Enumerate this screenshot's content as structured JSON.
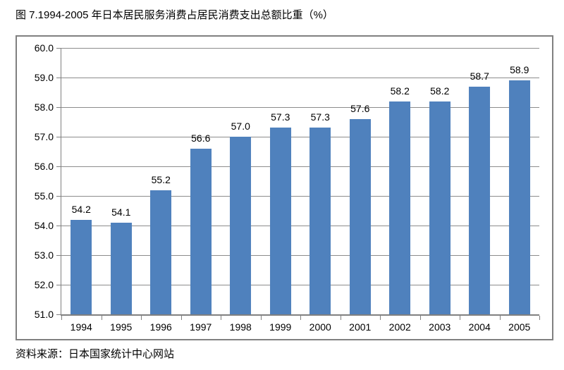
{
  "title": "图 7.1994-2005 年日本居民服务消费占居民消费支出总额比重（%）",
  "source": "资料来源：日本国家统计中心网站",
  "colors": {
    "bar": "#4F81BD",
    "grid": "#8C8C8C",
    "axis": "#808080",
    "frame": "#808080",
    "text": "#000000"
  },
  "chart_data": {
    "type": "bar",
    "title": "图 7.1994-2005 年日本居民服务消费占居民消费支出总额比重（%）",
    "categories": [
      "1994",
      "1995",
      "1996",
      "1997",
      "1998",
      "1999",
      "2000",
      "2001",
      "2002",
      "2003",
      "2004",
      "2005"
    ],
    "values": [
      54.2,
      54.1,
      55.2,
      56.6,
      57.0,
      57.3,
      57.3,
      57.6,
      58.2,
      58.2,
      58.7,
      58.9
    ],
    "value_labels": [
      "54.2",
      "54.1",
      "55.2",
      "56.6",
      "57.0",
      "57.3",
      "57.3",
      "57.6",
      "58.2",
      "58.2",
      "58.7",
      "58.9"
    ],
    "xlabel": "",
    "ylabel": "",
    "ylim": [
      51.0,
      60.0
    ],
    "y_tick_step": 1.0,
    "y_ticks": [
      "60.0",
      "59.0",
      "58.0",
      "57.0",
      "56.0",
      "55.0",
      "54.0",
      "53.0",
      "52.0",
      "51.0"
    ],
    "grid": true,
    "legend": false,
    "source": "资料来源：日本国家统计中心网站"
  }
}
